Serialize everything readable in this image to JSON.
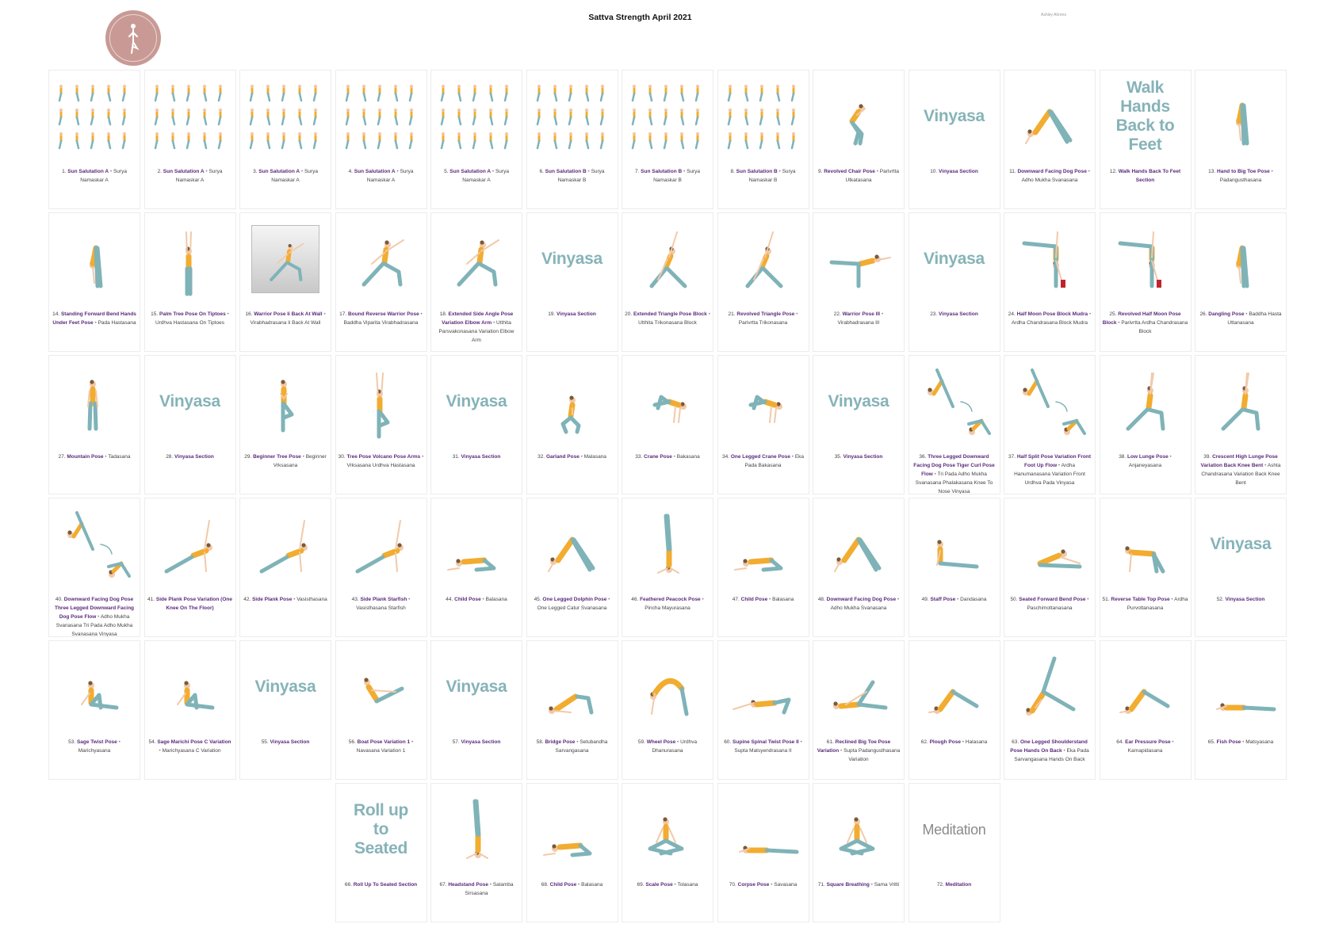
{
  "header": {
    "title": "Sattva Strength April 2021",
    "author": "Ashley Ahrens"
  },
  "colors": {
    "name_accent": "#5a2a7a",
    "vinyasa_text": "#86b3b8",
    "logo_bg": "#c99a95",
    "top": "#f2ac2f",
    "legs": "#7fb3b8"
  },
  "cards": [
    {
      "row": 0,
      "col": 0,
      "num": "1.",
      "name": "Sun Salutation A",
      "sanskrit": "Surya Namaskar A",
      "thumb": "sequence"
    },
    {
      "row": 0,
      "col": 1,
      "num": "2.",
      "name": "Sun Salutation A",
      "sanskrit": "Surya Namaskar A",
      "thumb": "sequence"
    },
    {
      "row": 0,
      "col": 2,
      "num": "3.",
      "name": "Sun Salutation A",
      "sanskrit": "Surya Namaskar A",
      "thumb": "sequence"
    },
    {
      "row": 0,
      "col": 3,
      "num": "4.",
      "name": "Sun Salutation A",
      "sanskrit": "Surya Namaskar A",
      "thumb": "sequence"
    },
    {
      "row": 0,
      "col": 4,
      "num": "5.",
      "name": "Sun Salutation A",
      "sanskrit": "Surya Namaskar A",
      "thumb": "sequence"
    },
    {
      "row": 0,
      "col": 5,
      "num": "6.",
      "name": "Sun Salutation B",
      "sanskrit": "Surya Namaskar B",
      "thumb": "sequence"
    },
    {
      "row": 0,
      "col": 6,
      "num": "7.",
      "name": "Sun Salutation B",
      "sanskrit": "Surya Namaskar B",
      "thumb": "sequence"
    },
    {
      "row": 0,
      "col": 7,
      "num": "8.",
      "name": "Sun Salutation B",
      "sanskrit": "Surya Namaskar B",
      "thumb": "sequence"
    },
    {
      "row": 0,
      "col": 8,
      "num": "9.",
      "name": "Revolved Chair Pose",
      "sanskrit": "Parivrtta Utkatasana",
      "thumb": "bend"
    },
    {
      "row": 0,
      "col": 9,
      "num": "10.",
      "name": "Vinyasa Section",
      "sanskrit": "",
      "thumb": "text",
      "text": "Vinyasa"
    },
    {
      "row": 0,
      "col": 10,
      "num": "11.",
      "name": "Downward Facing Dog Pose",
      "sanskrit": "Adho Mukha Svanasana",
      "thumb": "dog"
    },
    {
      "row": 0,
      "col": 11,
      "num": "12.",
      "name": "Walk Hands Back To Feet Section",
      "sanskrit": "",
      "thumb": "text",
      "text": "Walk Hands Back to Feet"
    },
    {
      "row": 0,
      "col": 12,
      "num": "13.",
      "name": "Hand to Big Toe Pose",
      "sanskrit": "Padangusthasana",
      "thumb": "fold"
    },
    {
      "row": 1,
      "col": 0,
      "num": "14.",
      "name": "Standing Forward Bend Hands Under Feet Pose",
      "sanskrit": "Pada Hastasana",
      "thumb": "fold"
    },
    {
      "row": 1,
      "col": 1,
      "num": "15.",
      "name": "Palm Tree Pose On Tiptoes",
      "sanskrit": "Urdhva Hastasana On Tiptoes",
      "thumb": "stand-arms"
    },
    {
      "row": 1,
      "col": 2,
      "num": "16.",
      "name": "Warrior Pose Ii Back At Wall",
      "sanskrit": "Virabhadrasana Ii Back At Wall",
      "thumb": "wall"
    },
    {
      "row": 1,
      "col": 3,
      "num": "17.",
      "name": "Bound Reverse Warrior Pose",
      "sanskrit": "Baddha Viparita Virabhadrasana",
      "thumb": "lunge"
    },
    {
      "row": 1,
      "col": 4,
      "num": "18.",
      "name": "Extended Side Angle Pose Variation Elbow Arm",
      "sanskrit": "Utthita Parsvakonasana Variation Elbow Arm",
      "thumb": "lunge"
    },
    {
      "row": 1,
      "col": 5,
      "num": "19.",
      "name": "Vinyasa Section",
      "sanskrit": "",
      "thumb": "text",
      "text": "Vinyasa"
    },
    {
      "row": 1,
      "col": 6,
      "num": "20.",
      "name": "Extended Triangle Pose Block",
      "sanskrit": "Utthita Trikonasana Block",
      "thumb": "triangle"
    },
    {
      "row": 1,
      "col": 7,
      "num": "21.",
      "name": "Revolved Triangle Pose",
      "sanskrit": "Parivrtta Trikonasana",
      "thumb": "triangle"
    },
    {
      "row": 1,
      "col": 8,
      "num": "22.",
      "name": "Warrior Pose III",
      "sanskrit": "Virabhadrasana III",
      "thumb": "balance"
    },
    {
      "row": 1,
      "col": 9,
      "num": "23.",
      "name": "Vinyasa Section",
      "sanskrit": "",
      "thumb": "text",
      "text": "Vinyasa"
    },
    {
      "row": 1,
      "col": 10,
      "num": "24.",
      "name": "Half Moon Pose Block Mudra",
      "sanskrit": "Ardha Chandrasana Block Mudra",
      "thumb": "halfmoon"
    },
    {
      "row": 1,
      "col": 11,
      "num": "25.",
      "name": "Revolved Half Moon Pose Block",
      "sanskrit": "Parivrtta Ardha Chandrasana Block",
      "thumb": "halfmoon"
    },
    {
      "row": 1,
      "col": 12,
      "num": "26.",
      "name": "Dangling Pose",
      "sanskrit": "Baddha Hasta Uttanasana",
      "thumb": "fold"
    },
    {
      "row": 2,
      "col": 0,
      "num": "27.",
      "name": "Mountain Pose",
      "sanskrit": "Tadasana",
      "thumb": "stand"
    },
    {
      "row": 2,
      "col": 1,
      "num": "28.",
      "name": "Vinyasa Section",
      "sanskrit": "",
      "thumb": "text",
      "text": "Vinyasa"
    },
    {
      "row": 2,
      "col": 2,
      "num": "29.",
      "name": "Beginner Tree Pose",
      "sanskrit": "Beginner Vrksasana",
      "thumb": "tree"
    },
    {
      "row": 2,
      "col": 3,
      "num": "30.",
      "name": "Tree Pose Volcano Pose Arms",
      "sanskrit": "Vrksasana Urdhva Hastasana",
      "thumb": "tree-arms"
    },
    {
      "row": 2,
      "col": 4,
      "num": "31.",
      "name": "Vinyasa Section",
      "sanskrit": "",
      "thumb": "text",
      "text": "Vinyasa"
    },
    {
      "row": 2,
      "col": 5,
      "num": "32.",
      "name": "Garland Pose",
      "sanskrit": "Malasana",
      "thumb": "squat"
    },
    {
      "row": 2,
      "col": 6,
      "num": "33.",
      "name": "Crane Pose",
      "sanskrit": "Bakasana",
      "thumb": "crane"
    },
    {
      "row": 2,
      "col": 7,
      "num": "34.",
      "name": "One Legged Crane Pose",
      "sanskrit": "Eka Pada Bakasana",
      "thumb": "crane"
    },
    {
      "row": 2,
      "col": 8,
      "num": "35.",
      "name": "Vinyasa Section",
      "sanskrit": "",
      "thumb": "text",
      "text": "Vinyasa"
    },
    {
      "row": 2,
      "col": 9,
      "num": "36.",
      "name": "Three Legged Downward Facing Dog Pose Tiger Curl Pose Flow",
      "sanskrit": "Tri Pada Adho Mukha Svanasana Phalakasana Knee To Nose Vinyasa",
      "thumb": "flow"
    },
    {
      "row": 2,
      "col": 10,
      "num": "37.",
      "name": "Half Split Pose Variation Front Foot Up Flow",
      "sanskrit": "Ardha Hanumanasana Variation Front Urdhva Pada Vinyasa",
      "thumb": "flow"
    },
    {
      "row": 2,
      "col": 11,
      "num": "38.",
      "name": "Low Lunge Pose",
      "sanskrit": "Anjaneyasana",
      "thumb": "lowlunge"
    },
    {
      "row": 2,
      "col": 12,
      "num": "39.",
      "name": "Crescent High Lunge Pose Variation Back Knee Bent",
      "sanskrit": "Ashta Chandrasana Variation Back Knee Bent",
      "thumb": "lowlunge"
    },
    {
      "row": 3,
      "col": 0,
      "num": "40.",
      "name": "Downward Facing Dog Pose Three Legged Downward Facing Dog Pose Flow",
      "sanskrit": "Adho Mukha Svanasana Tri Pada Adho Mukha Svanasana Vinyasa",
      "thumb": "flow"
    },
    {
      "row": 3,
      "col": 1,
      "num": "41.",
      "name": "Side Plank Pose Variation (One Knee On The Floor)",
      "sanskrit": "",
      "thumb": "sideplank"
    },
    {
      "row": 3,
      "col": 2,
      "num": "42.",
      "name": "Side Plank Pose",
      "sanskrit": "Vasisthasana",
      "thumb": "sideplank"
    },
    {
      "row": 3,
      "col": 3,
      "num": "43.",
      "name": "Side Plank Starfish",
      "sanskrit": "Vasisthasana Starfish",
      "thumb": "sideplank"
    },
    {
      "row": 3,
      "col": 4,
      "num": "44.",
      "name": "Child Pose",
      "sanskrit": "Balasana",
      "thumb": "child"
    },
    {
      "row": 3,
      "col": 5,
      "num": "45.",
      "name": "One Legged Dolphin Pose",
      "sanskrit": "One Legged Catur Svanasana",
      "thumb": "dog"
    },
    {
      "row": 3,
      "col": 6,
      "num": "46.",
      "name": "Feathered Peacock Pose",
      "sanskrit": "Pincha Mayurasana",
      "thumb": "inversion"
    },
    {
      "row": 3,
      "col": 7,
      "num": "47.",
      "name": "Child Pose",
      "sanskrit": "Balasana",
      "thumb": "child"
    },
    {
      "row": 3,
      "col": 8,
      "num": "48.",
      "name": "Downward Facing Dog Pose",
      "sanskrit": "Adho Mukha Svanasana",
      "thumb": "dog"
    },
    {
      "row": 3,
      "col": 9,
      "num": "49.",
      "name": "Staff Pose",
      "sanskrit": "Dandasana",
      "thumb": "seated"
    },
    {
      "row": 3,
      "col": 10,
      "num": "50.",
      "name": "Seated Forward Bend Pose",
      "sanskrit": "Paschimottanasana",
      "thumb": "seatedfold"
    },
    {
      "row": 3,
      "col": 11,
      "num": "51.",
      "name": "Reverse Table Top Pose",
      "sanskrit": "Ardha Purvottanasana",
      "thumb": "table"
    },
    {
      "row": 3,
      "col": 12,
      "num": "52.",
      "name": "Vinyasa Section",
      "sanskrit": "",
      "thumb": "text",
      "text": "Vinyasa"
    },
    {
      "row": 4,
      "col": 0,
      "num": "53.",
      "name": "Sage Twist Pose",
      "sanskrit": "Marichyasana",
      "thumb": "seatedtwist"
    },
    {
      "row": 4,
      "col": 1,
      "num": "54.",
      "name": "Sage Marichi Pose C Variation",
      "sanskrit": "Marichyasana C Variation",
      "thumb": "seatedtwist"
    },
    {
      "row": 4,
      "col": 2,
      "num": "55.",
      "name": "Vinyasa Section",
      "sanskrit": "",
      "thumb": "text",
      "text": "Vinyasa"
    },
    {
      "row": 4,
      "col": 3,
      "num": "56.",
      "name": "Boat Pose Variation 1",
      "sanskrit": "Navasana Variation 1",
      "thumb": "boat"
    },
    {
      "row": 4,
      "col": 4,
      "num": "57.",
      "name": "Vinyasa Section",
      "sanskrit": "",
      "thumb": "text",
      "text": "Vinyasa"
    },
    {
      "row": 4,
      "col": 5,
      "num": "58.",
      "name": "Bridge Pose",
      "sanskrit": "Setubandha Sarvangasana",
      "thumb": "bridge"
    },
    {
      "row": 4,
      "col": 6,
      "num": "59.",
      "name": "Wheel Pose",
      "sanskrit": "Urdhva Dhanurasana",
      "thumb": "wheel"
    },
    {
      "row": 4,
      "col": 7,
      "num": "60.",
      "name": "Supine Spinal Twist Pose II",
      "sanskrit": "Supta Matsyendrasana II",
      "thumb": "twistlie"
    },
    {
      "row": 4,
      "col": 8,
      "num": "61.",
      "name": "Reclined Big Toe Pose Variation",
      "sanskrit": "Supta Padangusthasana Variation",
      "thumb": "reclined"
    },
    {
      "row": 4,
      "col": 9,
      "num": "62.",
      "name": "Plough Pose",
      "sanskrit": "Halasana",
      "thumb": "plough"
    },
    {
      "row": 4,
      "col": 10,
      "num": "63.",
      "name": "One Legged Shoulderstand Pose Hands On Back",
      "sanskrit": "Eka Pada Sarvangasana Hands On Back",
      "thumb": "shoulderstand"
    },
    {
      "row": 4,
      "col": 11,
      "num": "64.",
      "name": "Ear Pressure Pose",
      "sanskrit": "Karnapidasana",
      "thumb": "plough"
    },
    {
      "row": 4,
      "col": 12,
      "num": "65.",
      "name": "Fish Pose",
      "sanskrit": "Matsyasana",
      "thumb": "lie"
    },
    {
      "row": 5,
      "col": 3,
      "num": "66.",
      "name": "Roll Up To Seated Section",
      "sanskrit": "",
      "thumb": "text",
      "text": "Roll up to Seated"
    },
    {
      "row": 5,
      "col": 4,
      "num": "67.",
      "name": "Headstand Pose",
      "sanskrit": "Salamba Sirsasana",
      "thumb": "inversion"
    },
    {
      "row": 5,
      "col": 5,
      "num": "68.",
      "name": "Child Pose",
      "sanskrit": "Balasana",
      "thumb": "child"
    },
    {
      "row": 5,
      "col": 6,
      "num": "69.",
      "name": "Scale Pose",
      "sanskrit": "Tolasana",
      "thumb": "lotus"
    },
    {
      "row": 5,
      "col": 7,
      "num": "70.",
      "name": "Corpse Pose",
      "sanskrit": "Savasana",
      "thumb": "lie"
    },
    {
      "row": 5,
      "col": 8,
      "num": "71.",
      "name": "Square Breathing",
      "sanskrit": "Sama Vritti",
      "thumb": "lotus"
    },
    {
      "row": 5,
      "col": 9,
      "num": "72.",
      "name": "Meditation",
      "sanskrit": "",
      "thumb": "text",
      "text": "Meditation"
    }
  ]
}
